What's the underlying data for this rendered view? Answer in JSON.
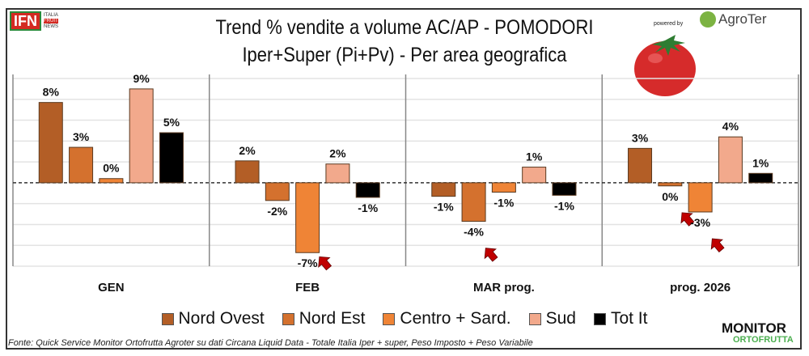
{
  "header": {
    "title_line1": "Trend % vendite a volume AC/AP - POMODORI",
    "title_line2": "Iper+Super (Pi+Pv) - Per area geografica",
    "powered_by": "powered by",
    "agroter_logo": "AgroTer",
    "ifn_logo": "IFN",
    "ifn_side": [
      "ITALIA",
      "FRUIT",
      "NEWS"
    ]
  },
  "footer": {
    "source": "Fonte: Quick Service Monitor Ortofrutta Agroter su dati Circana Liquid Data - Totale Italia Iper + super, Peso Imposto + Peso Variabile",
    "monitor_logo": "MONITOR",
    "monitor_sub": "ORTOFRUTTA"
  },
  "chart_data": {
    "type": "bar",
    "title": "Trend % vendite a volume AC/AP - POMODORI",
    "subtitle": "Iper+Super (Pi+Pv) - Per area geografica",
    "categories": [
      "GEN",
      "FEB",
      "MAR prog.",
      "prog. 2026"
    ],
    "ylim": [
      -8,
      10
    ],
    "grid": true,
    "legend_placement": "bottom",
    "series": [
      {
        "name": "Nord Ovest",
        "color": "#b35e26",
        "values": [
          7.7,
          2.1,
          -1.3,
          3.3
        ],
        "labels": [
          "8%",
          "2%",
          "-1%",
          "3%"
        ]
      },
      {
        "name": "Nord Est",
        "color": "#d4712e",
        "values": [
          3.4,
          -1.7,
          -3.7,
          -0.3
        ],
        "labels": [
          "3%",
          "-2%",
          "-4%",
          "0%"
        ]
      },
      {
        "name": "Centro + Sard.",
        "color": "#ef8436",
        "values": [
          0.4,
          -6.7,
          -0.9,
          -2.8
        ],
        "labels": [
          "0%",
          "-7%",
          "-1%",
          "-3%"
        ]
      },
      {
        "name": "Sud",
        "color": "#f2a98c",
        "values": [
          9.0,
          1.8,
          1.5,
          4.4
        ],
        "labels": [
          "9%",
          "2%",
          "1%",
          "4%"
        ]
      },
      {
        "name": "Tot It",
        "color": "#000000",
        "values": [
          4.8,
          -1.4,
          -1.2,
          0.9
        ],
        "labels": [
          "5%",
          "-1%",
          "-1%",
          "1%"
        ]
      }
    ],
    "highlight_arrows": [
      {
        "category": "FEB",
        "series": "Centro + Sard."
      },
      {
        "category": "MAR prog.",
        "series": "Nord Est"
      },
      {
        "category": "prog. 2026",
        "series": "Nord Est"
      },
      {
        "category": "prog. 2026",
        "series": "Centro + Sard."
      }
    ],
    "arrow_color": "#c00000"
  }
}
